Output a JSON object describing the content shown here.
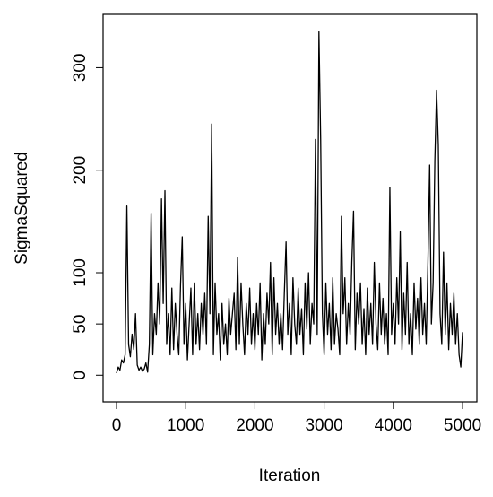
{
  "chart_data": {
    "type": "line",
    "xlabel": "Iteration",
    "ylabel": "SigmaSquared",
    "xlim": [
      -194,
      5207
    ],
    "ylim": [
      -26,
      352
    ],
    "xticks": [
      0,
      1000,
      2000,
      3000,
      4000,
      5000
    ],
    "yticks": [
      0,
      50,
      100,
      200,
      300
    ],
    "color": "#000000",
    "x": [
      0,
      25,
      50,
      75,
      100,
      125,
      150,
      175,
      200,
      225,
      250,
      275,
      300,
      325,
      350,
      375,
      400,
      425,
      450,
      475,
      500,
      525,
      550,
      575,
      600,
      625,
      650,
      675,
      700,
      725,
      750,
      775,
      800,
      825,
      850,
      875,
      900,
      925,
      950,
      975,
      1000,
      1025,
      1050,
      1075,
      1100,
      1125,
      1150,
      1175,
      1200,
      1225,
      1250,
      1275,
      1300,
      1325,
      1350,
      1375,
      1400,
      1425,
      1450,
      1475,
      1500,
      1525,
      1550,
      1575,
      1600,
      1625,
      1650,
      1675,
      1700,
      1725,
      1750,
      1775,
      1800,
      1825,
      1850,
      1875,
      1900,
      1925,
      1950,
      1975,
      2000,
      2025,
      2050,
      2075,
      2100,
      2125,
      2150,
      2175,
      2200,
      2225,
      2250,
      2275,
      2300,
      2325,
      2350,
      2375,
      2400,
      2425,
      2450,
      2475,
      2500,
      2525,
      2550,
      2575,
      2600,
      2625,
      2650,
      2675,
      2700,
      2725,
      2750,
      2775,
      2800,
      2825,
      2850,
      2875,
      2900,
      2925,
      2950,
      2975,
      3000,
      3025,
      3050,
      3075,
      3100,
      3125,
      3150,
      3175,
      3200,
      3225,
      3250,
      3275,
      3300,
      3325,
      3350,
      3375,
      3400,
      3425,
      3450,
      3475,
      3500,
      3525,
      3550,
      3575,
      3600,
      3625,
      3650,
      3675,
      3700,
      3725,
      3750,
      3775,
      3800,
      3825,
      3850,
      3875,
      3900,
      3925,
      3950,
      3975,
      4000,
      4025,
      4050,
      4075,
      4100,
      4125,
      4150,
      4175,
      4200,
      4225,
      4250,
      4275,
      4300,
      4325,
      4350,
      4375,
      4400,
      4425,
      4450,
      4475,
      4500,
      4525,
      4550,
      4575,
      4600,
      4625,
      4650,
      4675,
      4700,
      4725,
      4750,
      4775,
      4800,
      4825,
      4850,
      4875,
      4900,
      4925,
      4950,
      4975,
      5000
    ],
    "values": [
      2,
      8,
      5,
      15,
      12,
      20,
      165,
      30,
      18,
      40,
      25,
      60,
      10,
      5,
      8,
      4,
      6,
      12,
      3,
      30,
      158,
      20,
      60,
      40,
      90,
      50,
      172,
      70,
      180,
      30,
      60,
      20,
      85,
      25,
      70,
      40,
      20,
      88,
      135,
      30,
      70,
      15,
      50,
      85,
      20,
      90,
      30,
      60,
      25,
      70,
      40,
      80,
      30,
      155,
      60,
      245,
      20,
      90,
      40,
      60,
      15,
      70,
      30,
      50,
      20,
      75,
      40,
      60,
      80,
      25,
      115,
      30,
      90,
      50,
      20,
      70,
      40,
      85,
      30,
      60,
      25,
      70,
      40,
      90,
      15,
      60,
      30,
      80,
      50,
      110,
      20,
      95,
      40,
      70,
      30,
      60,
      25,
      80,
      130,
      40,
      70,
      20,
      95,
      50,
      30,
      85,
      40,
      65,
      20,
      90,
      45,
      100,
      30,
      70,
      50,
      230,
      40,
      335,
      230,
      60,
      20,
      90,
      40,
      70,
      25,
      95,
      30,
      60,
      45,
      20,
      155,
      60,
      95,
      30,
      70,
      40,
      110,
      160,
      25,
      80,
      50,
      90,
      30,
      65,
      20,
      85,
      40,
      70,
      30,
      110,
      50,
      25,
      90,
      40,
      75,
      30,
      60,
      20,
      183,
      40,
      70,
      30,
      95,
      50,
      140,
      25,
      80,
      40,
      110,
      30,
      60,
      20,
      90,
      45,
      75,
      30,
      95,
      40,
      70,
      30,
      110,
      205,
      50,
      90,
      210,
      278,
      225,
      60,
      30,
      120,
      40,
      90,
      25,
      70,
      40,
      80,
      30,
      60,
      20,
      8,
      42
    ]
  }
}
